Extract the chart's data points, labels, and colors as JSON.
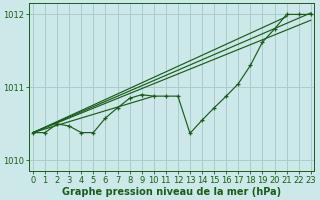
{
  "title": "Graphe pression niveau de la mer (hPa)",
  "bg_color": "#cce8e8",
  "line_color": "#1a5c1a",
  "grid_color": "#aacccc",
  "yticks": [
    1010,
    1011,
    1012
  ],
  "ylim": [
    1009.85,
    1012.15
  ],
  "xlim": [
    -0.3,
    23.3
  ],
  "xticks": [
    0,
    1,
    2,
    3,
    4,
    5,
    6,
    7,
    8,
    9,
    10,
    11,
    12,
    13,
    14,
    15,
    16,
    17,
    18,
    19,
    20,
    21,
    22,
    23
  ],
  "main_series": [
    1010.38,
    1010.38,
    1010.5,
    1010.47,
    1010.38,
    1010.38,
    1010.58,
    1010.72,
    1010.85,
    1010.9,
    1010.88,
    1010.88,
    1010.88,
    1010.37,
    1010.55,
    1010.72,
    1010.88,
    1011.05,
    1011.3,
    1011.62,
    1011.8,
    1012.0,
    1012.0,
    1012.0
  ],
  "straight_lines": [
    [
      [
        0,
        23
      ],
      [
        1010.38,
        1012.02
      ]
    ],
    [
      [
        0,
        23
      ],
      [
        1010.38,
        1011.92
      ]
    ],
    [
      [
        0,
        21
      ],
      [
        1010.38,
        1011.97
      ]
    ],
    [
      [
        0,
        10
      ],
      [
        1010.38,
        1010.88
      ]
    ]
  ],
  "tick_fontsize": 6.0,
  "label_fontsize": 7.0
}
